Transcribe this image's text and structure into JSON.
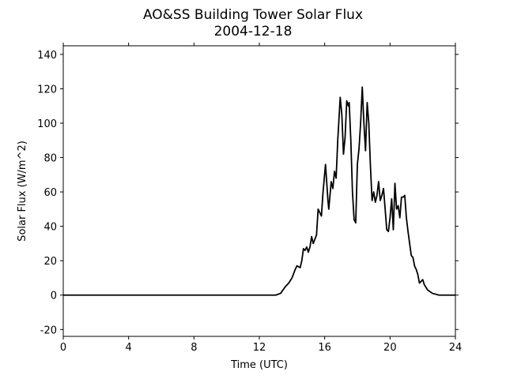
{
  "chart_data": {
    "type": "line",
    "title": "AO&SS Building Tower Solar Flux",
    "subtitle": "2004-12-18",
    "x_label": "Time (UTC)",
    "y_label": "Solar Flux (W/m^2)",
    "xlim": [
      0,
      24
    ],
    "xticks": [
      0,
      4,
      8,
      12,
      16,
      20,
      24
    ],
    "ylim": [
      -24,
      145
    ],
    "yticks": [
      -20,
      0,
      20,
      40,
      60,
      80,
      100,
      120,
      140
    ],
    "x": [
      0,
      13.0,
      13.3,
      13.6,
      13.8,
      14.0,
      14.2,
      14.3,
      14.5,
      14.6,
      14.7,
      14.8,
      14.9,
      15.0,
      15.1,
      15.2,
      15.3,
      15.5,
      15.6,
      15.8,
      15.9,
      16.05,
      16.2,
      16.25,
      16.4,
      16.5,
      16.6,
      16.7,
      16.8,
      16.95,
      17.05,
      17.15,
      17.25,
      17.35,
      17.45,
      17.5,
      17.6,
      17.7,
      17.8,
      17.9,
      18.0,
      18.1,
      18.2,
      18.3,
      18.4,
      18.5,
      18.6,
      18.7,
      18.8,
      18.9,
      19.0,
      19.1,
      19.2,
      19.3,
      19.4,
      19.5,
      19.6,
      19.7,
      19.8,
      19.9,
      20.0,
      20.1,
      20.2,
      20.3,
      20.4,
      20.5,
      20.6,
      20.7,
      20.8,
      20.9,
      21.0,
      21.1,
      21.2,
      21.3,
      21.4,
      21.5,
      21.6,
      21.7,
      21.8,
      21.9,
      22.0,
      22.1,
      22.3,
      22.6,
      23.0,
      24.0
    ],
    "series": [
      {
        "name": "Solar Flux",
        "color": "#000000",
        "values": [
          0,
          0,
          1,
          5,
          7,
          10,
          15,
          17,
          16,
          20,
          27,
          26,
          28,
          25,
          28,
          34,
          30,
          35,
          50,
          46,
          60,
          76,
          55,
          50,
          66,
          62,
          72,
          68,
          90,
          115,
          105,
          82,
          92,
          113,
          110,
          112,
          90,
          60,
          44,
          42,
          76,
          85,
          100,
          121,
          100,
          84,
          112,
          100,
          75,
          55,
          60,
          54,
          58,
          66,
          55,
          58,
          62,
          50,
          38,
          37,
          45,
          56,
          38,
          65,
          50,
          52,
          45,
          57,
          57,
          58,
          45,
          37,
          30,
          23,
          22,
          17,
          15,
          12,
          7,
          8,
          9,
          6,
          3,
          1,
          0,
          0
        ]
      }
    ]
  }
}
